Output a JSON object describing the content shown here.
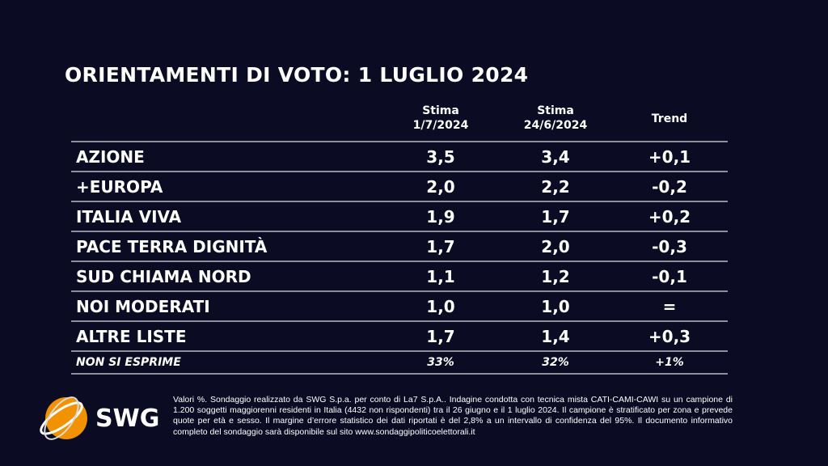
{
  "title": "ORIENTAMENTI DI VOTO: 1 LUGLIO 2024",
  "columns": [
    {
      "line1": "Stima",
      "line2": "1/7/2024"
    },
    {
      "line1": "Stima",
      "line2": "24/6/2024"
    },
    {
      "line1": "Trend",
      "line2": ""
    }
  ],
  "rows": [
    {
      "name": "AZIONE",
      "current": "3,5",
      "previous": "3,4",
      "trend": "+0,1"
    },
    {
      "name": "+EUROPA",
      "current": "2,0",
      "previous": "2,2",
      "trend": "-0,2"
    },
    {
      "name": "ITALIA VIVA",
      "current": "1,9",
      "previous": "1,7",
      "trend": "+0,2"
    },
    {
      "name": "PACE TERRA DIGNITÀ",
      "current": "1,7",
      "previous": "2,0",
      "trend": "-0,3"
    },
    {
      "name": "SUD CHIAMA NORD",
      "current": "1,1",
      "previous": "1,2",
      "trend": "-0,1"
    },
    {
      "name": "NOI MODERATI",
      "current": "1,0",
      "previous": "1,0",
      "trend": "="
    },
    {
      "name": "ALTRE LISTE",
      "current": "1,7",
      "previous": "1,4",
      "trend": "+0,3"
    },
    {
      "name": "NON SI ESPRIME",
      "current": "33%",
      "previous": "32%",
      "trend": "+1%"
    }
  ],
  "logo": {
    "text": "SWG",
    "color": "#f39200"
  },
  "footnote": "Valori %. Sondaggio realizzato da SWG S.p.a. per conto di La7 S.p.A.. Indagine condotta con tecnica mista CATI-CAMI-CAWI su un campione di 1.200 soggetti maggiorenni residenti in Italia (4432 non rispondenti) tra il 26 giugno e il 1 luglio 2024. Il campione è stratificato per zona e prevede quote per età e sesso. Il margine d’errore statistico dei dati riportati è del 2,8% a un intervallo di confidenza del 95%. Il documento informativo completo del sondaggio sarà disponibile sul sito www.sondaggipoliticoelettorali.it"
}
